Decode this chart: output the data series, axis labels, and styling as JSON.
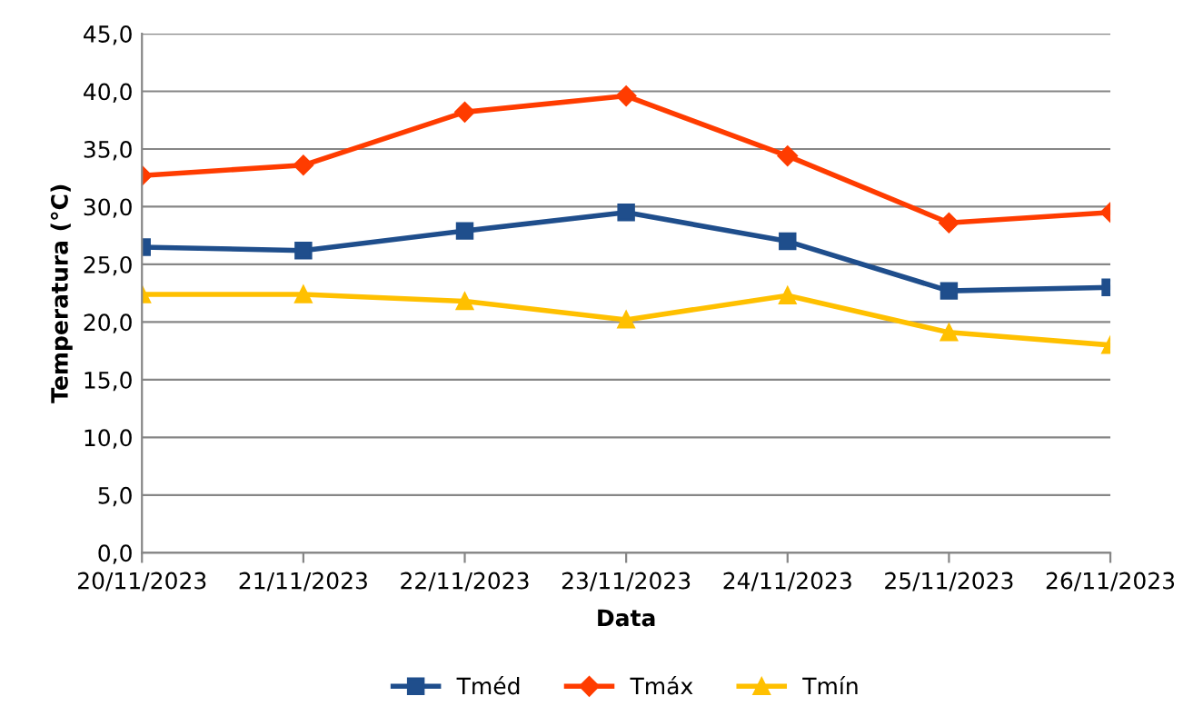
{
  "chart_data": {
    "type": "line",
    "xlabel": "Data",
    "ylabel": "Temperatura (°C)",
    "categories": [
      "20/11/2023",
      "21/11/2023",
      "22/11/2023",
      "23/11/2023",
      "24/11/2023",
      "25/11/2023",
      "26/11/2023"
    ],
    "series": [
      {
        "name": "Tméd",
        "color": "#1f4e8c",
        "marker": "square",
        "values": [
          26.5,
          26.2,
          27.9,
          29.5,
          27.0,
          22.7,
          23.0
        ]
      },
      {
        "name": "Tmáx",
        "color": "#ff3c00",
        "marker": "diamond",
        "values": [
          32.7,
          33.6,
          38.2,
          39.6,
          34.4,
          28.6,
          29.5
        ]
      },
      {
        "name": "Tmín",
        "color": "#ffc000",
        "marker": "triangle",
        "values": [
          22.4,
          22.4,
          21.8,
          20.2,
          22.3,
          19.1,
          18.0
        ]
      }
    ],
    "ylim": [
      0,
      45
    ],
    "yticks": [
      {
        "value": 0,
        "label": "0,0"
      },
      {
        "value": 5,
        "label": "5,0"
      },
      {
        "value": 10,
        "label": "10,0"
      },
      {
        "value": 15,
        "label": "15,0"
      },
      {
        "value": 20,
        "label": "20,0"
      },
      {
        "value": 25,
        "label": "25,0"
      },
      {
        "value": 30,
        "label": "30,0"
      },
      {
        "value": 35,
        "label": "35,0"
      },
      {
        "value": 40,
        "label": "40,0"
      },
      {
        "value": 45,
        "label": "45,0"
      }
    ],
    "grid": "y",
    "legend": "bottom"
  }
}
